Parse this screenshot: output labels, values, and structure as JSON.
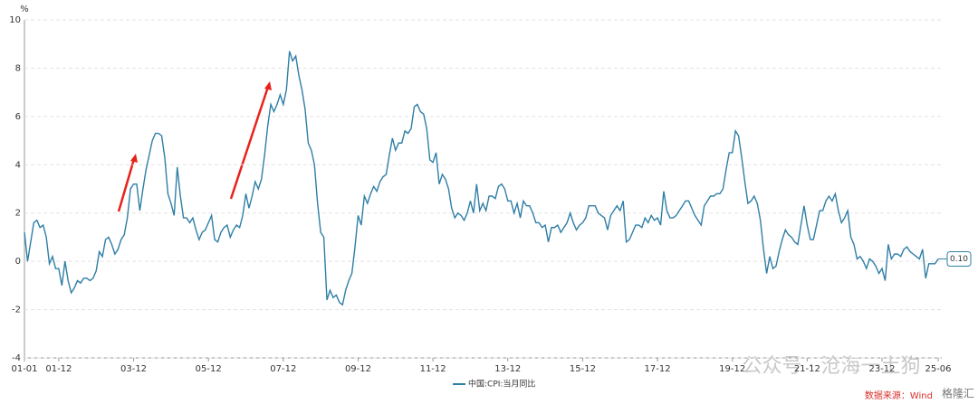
{
  "chart_data": {
    "type": "line",
    "y_unit": "%",
    "categories": [
      "01-01",
      null,
      null,
      null,
      null,
      null,
      null,
      null,
      null,
      null,
      null,
      "01-12",
      null,
      null,
      null,
      null,
      null,
      null,
      null,
      null,
      null,
      null,
      null,
      null,
      null,
      null,
      null,
      null,
      null,
      null,
      null,
      null,
      null,
      null,
      null,
      "03-12",
      null,
      null,
      null,
      null,
      null,
      null,
      null,
      null,
      null,
      null,
      null,
      null,
      null,
      null,
      null,
      null,
      null,
      null,
      null,
      null,
      null,
      null,
      null,
      "05-12",
      null,
      null,
      null,
      null,
      null,
      null,
      null,
      null,
      null,
      null,
      null,
      null,
      null,
      null,
      null,
      null,
      null,
      null,
      null,
      null,
      null,
      null,
      null,
      "07-12",
      null,
      null,
      null,
      null,
      null,
      null,
      null,
      null,
      null,
      null,
      null,
      null,
      null,
      null,
      null,
      null,
      null,
      null,
      null,
      null,
      null,
      null,
      null,
      "09-12",
      null,
      null,
      null,
      null,
      null,
      null,
      null,
      null,
      null,
      null,
      null,
      null,
      null,
      null,
      null,
      null,
      null,
      null,
      null,
      null,
      null,
      null,
      null,
      "11-12",
      null,
      null,
      null,
      null,
      null,
      null,
      null,
      null,
      null,
      null,
      null,
      null,
      null,
      null,
      null,
      null,
      null,
      null,
      null,
      null,
      null,
      null,
      null,
      "13-12",
      null,
      null,
      null,
      null,
      null,
      null,
      null,
      null,
      null,
      null,
      null,
      null,
      null,
      null,
      null,
      null,
      null,
      null,
      null,
      null,
      null,
      null,
      null,
      "15-12",
      null,
      null,
      null,
      null,
      null,
      null,
      null,
      null,
      null,
      null,
      null,
      null,
      null,
      null,
      null,
      null,
      null,
      null,
      null,
      null,
      null,
      null,
      null,
      "17-12",
      null,
      null,
      null,
      null,
      null,
      null,
      null,
      null,
      null,
      null,
      null,
      null,
      null,
      null,
      null,
      null,
      null,
      null,
      null,
      null,
      null,
      null,
      null,
      "19-12",
      null,
      null,
      null,
      null,
      null,
      null,
      null,
      null,
      null,
      null,
      null,
      null,
      null,
      null,
      null,
      null,
      null,
      null,
      null,
      null,
      null,
      null,
      null,
      "21-12",
      null,
      null,
      null,
      null,
      null,
      null,
      null,
      null,
      null,
      null,
      null,
      null,
      null,
      null,
      null,
      null,
      null,
      null,
      null,
      null,
      null,
      null,
      null,
      "23-12",
      null,
      null,
      null,
      null,
      null,
      null,
      null,
      null,
      null,
      null,
      null,
      null,
      null,
      null,
      null,
      null,
      null,
      "25-06"
    ],
    "series": [
      {
        "name": "中国:CPI:当月同比",
        "color": "#2f7ea6",
        "values": [
          1.2,
          0.0,
          0.8,
          1.6,
          1.7,
          1.4,
          1.5,
          1.0,
          -0.1,
          0.2,
          -0.3,
          -0.3,
          -1.0,
          0.0,
          -0.8,
          -1.3,
          -1.1,
          -0.8,
          -0.9,
          -0.7,
          -0.7,
          -0.8,
          -0.7,
          -0.4,
          0.4,
          0.2,
          0.9,
          1.0,
          0.7,
          0.3,
          0.5,
          0.9,
          1.1,
          1.8,
          3.0,
          3.2,
          3.2,
          2.1,
          3.0,
          3.8,
          4.4,
          5.0,
          5.3,
          5.3,
          5.2,
          4.3,
          2.8,
          2.4,
          1.9,
          3.9,
          2.7,
          1.8,
          1.8,
          1.6,
          1.8,
          1.3,
          0.9,
          1.2,
          1.3,
          1.6,
          1.9,
          0.9,
          0.8,
          1.2,
          1.4,
          1.5,
          1.0,
          1.3,
          1.5,
          1.4,
          1.9,
          2.8,
          2.2,
          2.7,
          3.3,
          3.0,
          3.4,
          4.4,
          5.6,
          6.5,
          6.2,
          6.5,
          6.9,
          6.5,
          7.1,
          8.7,
          8.3,
          8.5,
          7.7,
          7.1,
          6.3,
          4.9,
          4.6,
          4.0,
          2.4,
          1.2,
          1.0,
          -1.6,
          -1.2,
          -1.5,
          -1.4,
          -1.7,
          -1.8,
          -1.2,
          -0.8,
          -0.5,
          0.6,
          1.9,
          1.5,
          2.7,
          2.4,
          2.8,
          3.1,
          2.9,
          3.3,
          3.5,
          3.6,
          4.4,
          5.1,
          4.6,
          4.9,
          4.9,
          5.4,
          5.3,
          5.5,
          6.4,
          6.5,
          6.2,
          6.1,
          5.5,
          4.2,
          4.1,
          4.5,
          3.2,
          3.6,
          3.4,
          3.0,
          2.2,
          1.8,
          2.0,
          1.9,
          1.7,
          2.0,
          2.5,
          2.0,
          3.2,
          2.1,
          2.4,
          2.1,
          2.7,
          2.7,
          2.6,
          3.1,
          3.2,
          3.0,
          2.5,
          2.5,
          2.0,
          2.4,
          1.8,
          2.5,
          2.3,
          2.3,
          2.0,
          1.6,
          1.6,
          1.4,
          1.5,
          0.8,
          1.4,
          1.4,
          1.5,
          1.2,
          1.4,
          1.6,
          2.0,
          1.6,
          1.3,
          1.5,
          1.6,
          1.8,
          2.3,
          2.3,
          2.3,
          2.0,
          1.9,
          1.8,
          1.3,
          1.9,
          2.1,
          2.3,
          2.1,
          2.5,
          0.8,
          0.9,
          1.2,
          1.5,
          1.5,
          1.4,
          1.8,
          1.6,
          1.9,
          1.7,
          1.8,
          1.5,
          2.9,
          2.1,
          1.8,
          1.8,
          1.9,
          2.1,
          2.3,
          2.5,
          2.5,
          2.2,
          1.9,
          1.7,
          1.5,
          2.3,
          2.5,
          2.7,
          2.7,
          2.8,
          2.8,
          3.0,
          3.8,
          4.5,
          4.5,
          5.4,
          5.2,
          4.3,
          3.3,
          2.4,
          2.5,
          2.7,
          2.4,
          1.7,
          0.5,
          -0.5,
          0.2,
          -0.3,
          -0.2,
          0.4,
          0.9,
          1.3,
          1.1,
          1.0,
          0.8,
          0.7,
          1.5,
          2.3,
          1.5,
          0.9,
          0.9,
          1.5,
          2.1,
          2.1,
          2.5,
          2.7,
          2.5,
          2.8,
          2.1,
          1.6,
          1.8,
          2.1,
          1.0,
          0.7,
          0.1,
          0.2,
          0.0,
          -0.3,
          0.1,
          0.0,
          -0.2,
          -0.5,
          -0.3,
          -0.8,
          0.7,
          0.1,
          0.3,
          0.3,
          0.2,
          0.5,
          0.6,
          0.4,
          0.3,
          0.2,
          0.1,
          0.5,
          -0.7,
          -0.1,
          -0.1,
          -0.1,
          0.1
        ],
        "value_labels": [
          null,
          null,
          null,
          null,
          null,
          null,
          null,
          null,
          null,
          null,
          null,
          null,
          null,
          null,
          null,
          null,
          null,
          null,
          null,
          null,
          null,
          null,
          null,
          null,
          null,
          null,
          null,
          null,
          null,
          null,
          null,
          null,
          null,
          null,
          null,
          null,
          null,
          null,
          null,
          null,
          null,
          null,
          null,
          null,
          null,
          null,
          null,
          null,
          null,
          null,
          null,
          null,
          null,
          null,
          null,
          null,
          null,
          null,
          null,
          null,
          null,
          null,
          null,
          null,
          null,
          null,
          null,
          null,
          null,
          null,
          null,
          null,
          null,
          null,
          null,
          null,
          null,
          null,
          null,
          null,
          null,
          null,
          null,
          null,
          null,
          null,
          null,
          null,
          null,
          null,
          null,
          null,
          null,
          null,
          null,
          null,
          null,
          null,
          null,
          null,
          null,
          null,
          null,
          null,
          null,
          null,
          null,
          null,
          null,
          null,
          null,
          null,
          null,
          null,
          null,
          null,
          null,
          null,
          null,
          null,
          null,
          null,
          null,
          null,
          null,
          null,
          null,
          null,
          null,
          null,
          null,
          null,
          null,
          null,
          null,
          null,
          null,
          null,
          null,
          null,
          null,
          null,
          null,
          null,
          null,
          null,
          null,
          null,
          null,
          null,
          null,
          null,
          null,
          null,
          null,
          null,
          null,
          null,
          null,
          null,
          null,
          null,
          null,
          null,
          null,
          null,
          null,
          null,
          null,
          null,
          null,
          null,
          null,
          null,
          null,
          null,
          null,
          null,
          null,
          null,
          null,
          null,
          null,
          null,
          null,
          null,
          null,
          null,
          null,
          null,
          null,
          null,
          null,
          null,
          null,
          null,
          null,
          null,
          null,
          null,
          null,
          null,
          null,
          null,
          null,
          null,
          null,
          null,
          null,
          null,
          null,
          null,
          null,
          null,
          null,
          null,
          null,
          null,
          null,
          null,
          null,
          null,
          null,
          null,
          null,
          null,
          null,
          null,
          null,
          null,
          null,
          null,
          null,
          null,
          null,
          null,
          null,
          null,
          null,
          null,
          null,
          null,
          null,
          null,
          null,
          null,
          null,
          null,
          null,
          null,
          null,
          null,
          null,
          null,
          null,
          null,
          null,
          null,
          null,
          null,
          null,
          null,
          null,
          null,
          null,
          null,
          null,
          null,
          null,
          null,
          null,
          null,
          null,
          null,
          null,
          null,
          null,
          null,
          null,
          null,
          null,
          null,
          null,
          null,
          null,
          null,
          null,
          null,
          null,
          null,
          null,
          null,
          null,
          "0.10"
        ]
      }
    ],
    "ylim": [
      -4,
      10
    ],
    "yticks": [
      -4,
      -2,
      0,
      2,
      4,
      6,
      8,
      10
    ],
    "grid": true,
    "legend": "bottom",
    "watermark": "公众号 · 沧海一土狗",
    "source": "数据来源：Wind",
    "logo": "格隆汇"
  }
}
